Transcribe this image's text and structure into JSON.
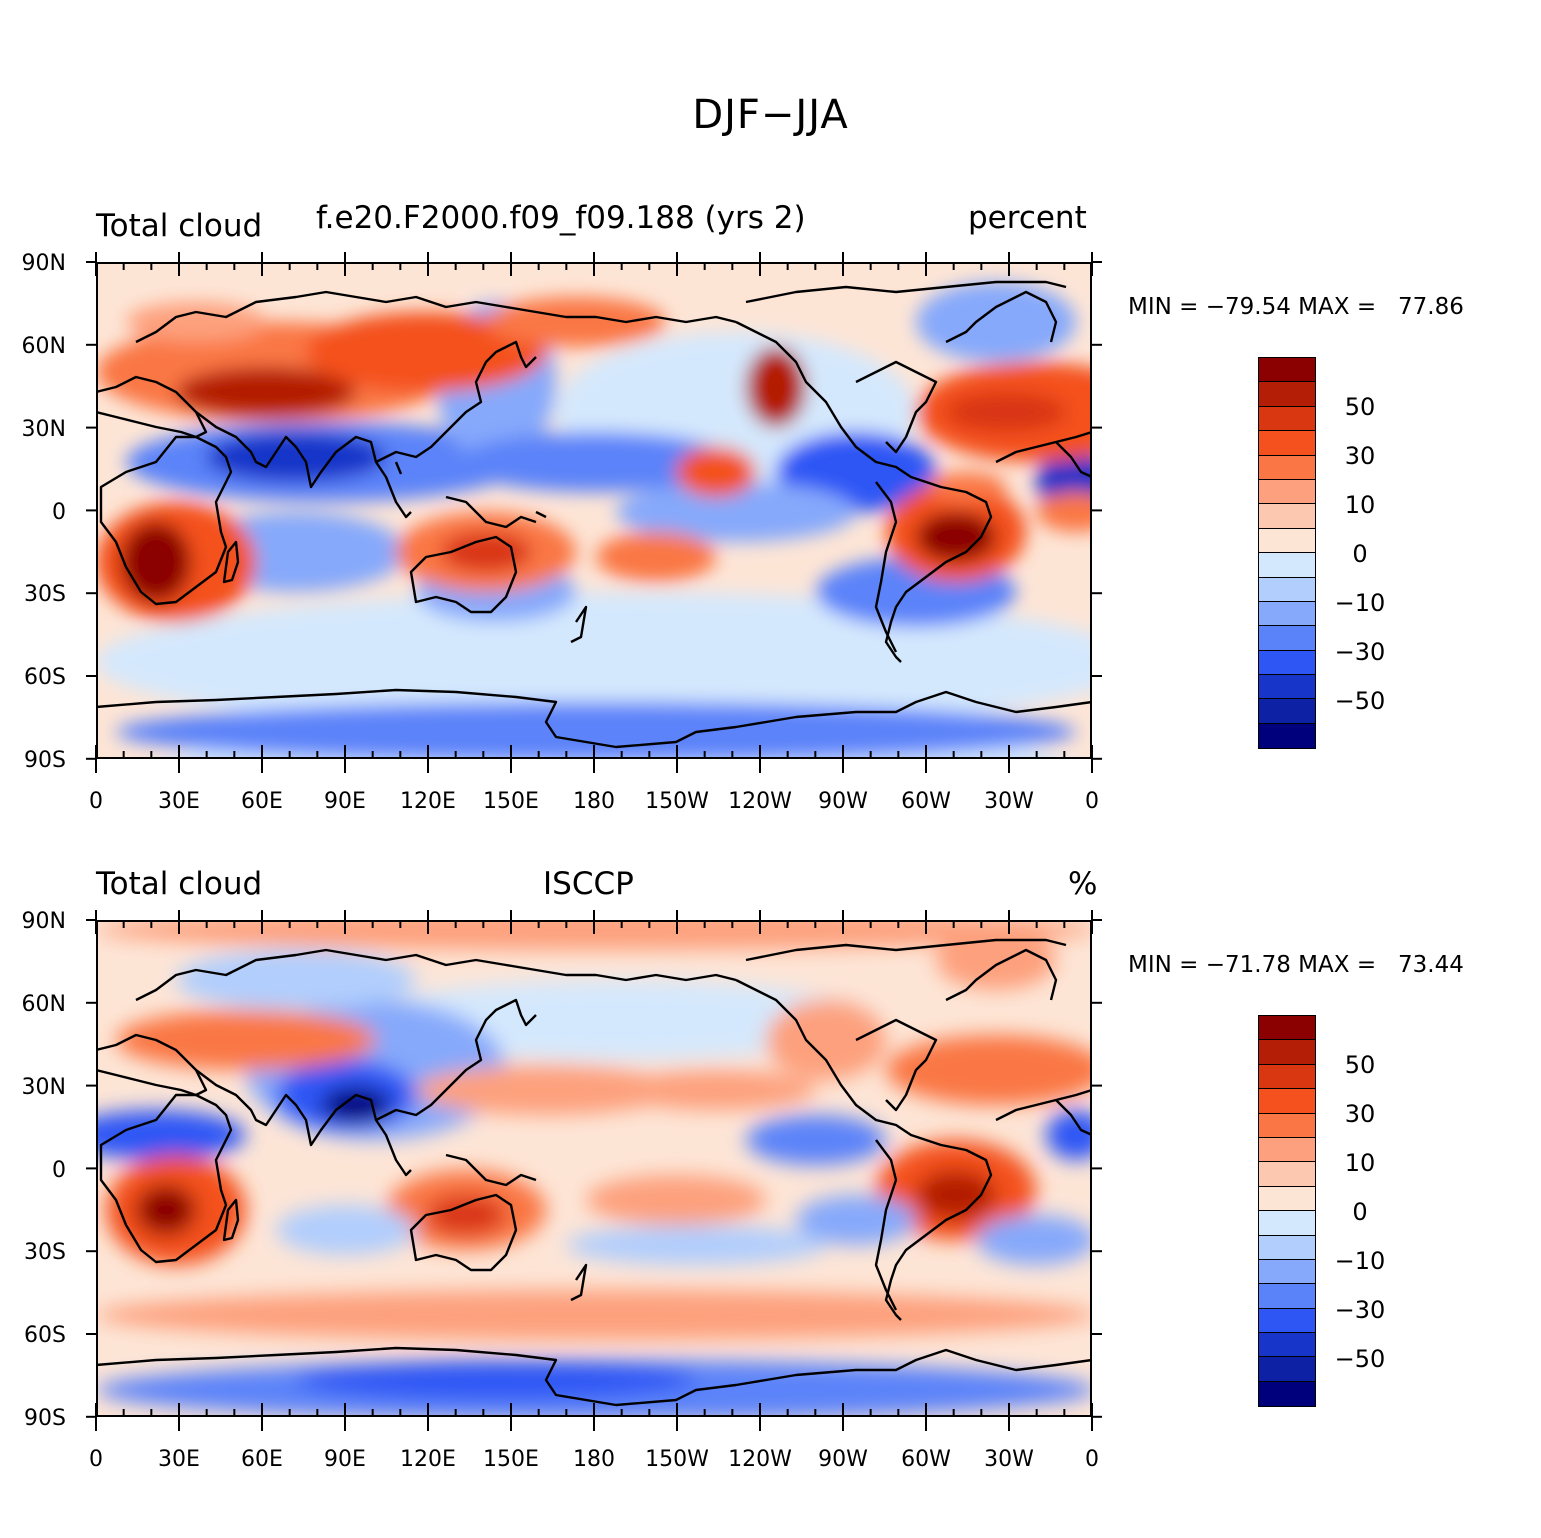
{
  "title": "DJF−JJA",
  "panels": [
    {
      "left_title": "Total cloud",
      "center_title": "f.e20.F2000.f09_f09.188 (yrs 2)",
      "right_title": "percent",
      "min_label": "MIN =",
      "min_value": "−79.54",
      "max_label": "MAX =",
      "max_value": "77.86"
    },
    {
      "left_title": "Total cloud",
      "center_title": "ISCCP",
      "right_title": "%",
      "min_label": "MIN =",
      "min_value": "−71.78",
      "max_label": "MAX =",
      "max_value": "73.44"
    }
  ],
  "lat_labels": [
    "90N",
    "60N",
    "30N",
    "0",
    "30S",
    "60S",
    "90S"
  ],
  "lon_labels": [
    "0",
    "30E",
    "60E",
    "90E",
    "120E",
    "150E",
    "180",
    "150W",
    "120W",
    "90W",
    "60W",
    "30W",
    "0"
  ],
  "colorbar": {
    "labels": [
      "50",
      "30",
      "10",
      "0",
      "−10",
      "−30",
      "−50"
    ],
    "colors": [
      "#8b0000",
      "#b41e06",
      "#d93612",
      "#f4511e",
      "#fa7745",
      "#fda07d",
      "#fdc8b0",
      "#fde5d6",
      "#d4e8fd",
      "#b1cefd",
      "#86a9fb",
      "#5b83f9",
      "#2e56f5",
      "#1736c9",
      "#0c21a3",
      "#00007d"
    ]
  },
  "colors": {
    "coastline": "#000000",
    "land_frame": "#000000"
  }
}
